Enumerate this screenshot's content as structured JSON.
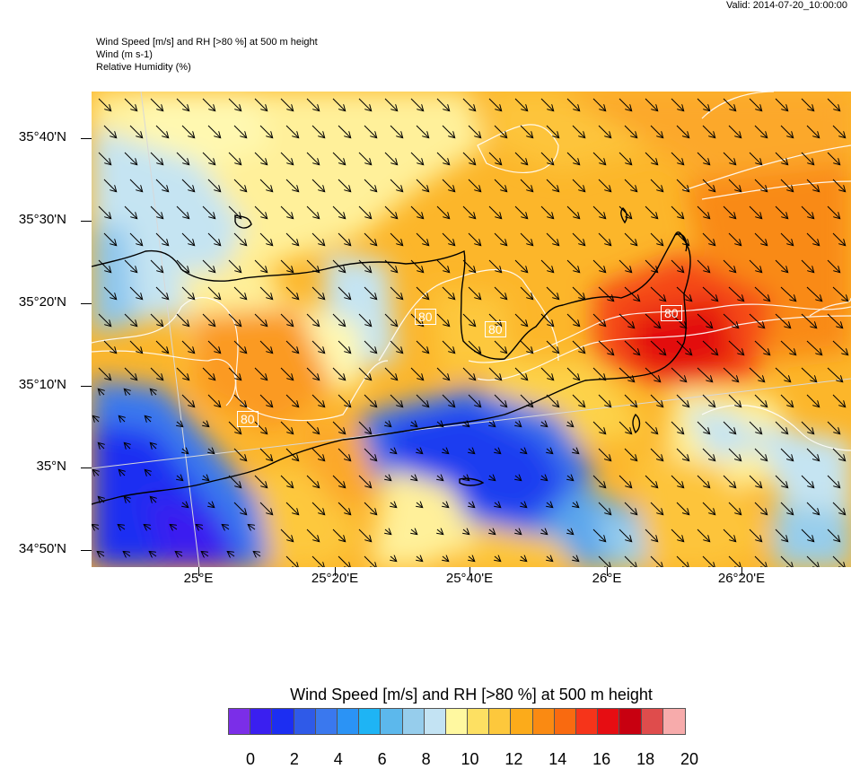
{
  "valid_time": "Valid: 2014-07-20_10:00:00",
  "header": {
    "line1": "Wind Speed [m/s] and RH [>80 %] at 500 m height",
    "line2": "Wind   (m s-1)",
    "line3": "Relative Humidity   (%)"
  },
  "axes": {
    "lat_labels": [
      "35°40'N",
      "35°30'N",
      "35°20'N",
      "35°10'N",
      "35°N",
      "34°50'N"
    ],
    "lon_labels": [
      "25°E",
      "25°20'E",
      "25°40'E",
      "26°E",
      "26°20'E"
    ]
  },
  "contour_labels": [
    "80",
    "80",
    "80",
    "80"
  ],
  "legend": {
    "title": "Wind Speed [m/s] and RH [>80 %] at 500 m height",
    "tick_labels": [
      "0",
      "2",
      "4",
      "6",
      "8",
      "10",
      "12",
      "14",
      "16",
      "18",
      "20"
    ],
    "colors": [
      "#7b2ee8",
      "#3a1ff0",
      "#1c2ef2",
      "#2f5ae8",
      "#3a78ee",
      "#2b93f5",
      "#1eb4f5",
      "#5cb8ec",
      "#96cdec",
      "#c3e3f3",
      "#fff8a0",
      "#fde062",
      "#fdc83c",
      "#fcab1a",
      "#fa8a12",
      "#f96a10",
      "#f6341a",
      "#e60d12",
      "#c80010",
      "#df4c4c",
      "#f7abab"
    ]
  }
}
